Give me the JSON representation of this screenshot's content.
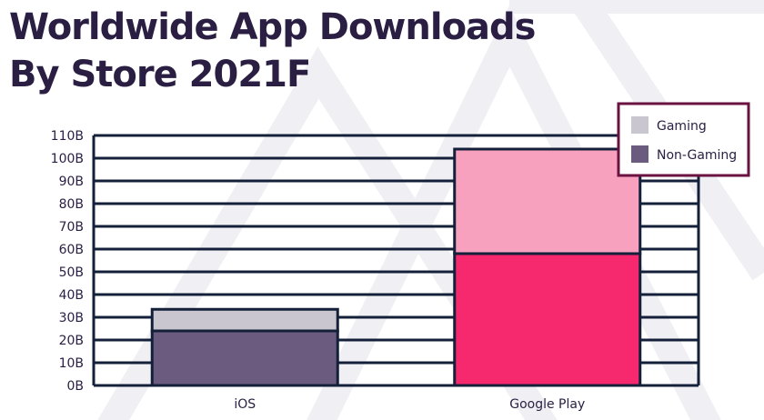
{
  "title_line1": "Worldwide App Downloads",
  "title_line2": "By Store 2021F",
  "chart_data": {
    "type": "bar",
    "stacked": true,
    "categories": [
      "iOS",
      "Google Play"
    ],
    "series": [
      {
        "name": "Non-Gaming",
        "values": [
          24,
          58
        ]
      },
      {
        "name": "Gaming",
        "values": [
          9.5,
          46
        ]
      }
    ],
    "yticks": [
      "0B",
      "10B",
      "20B",
      "30B",
      "40B",
      "50B",
      "60B",
      "70B",
      "80B",
      "90B",
      "100B",
      "110B"
    ],
    "ylim": [
      0,
      110
    ],
    "grid": true,
    "legend_position": "top-right",
    "colors": {
      "ios_non_gaming": "#6b5b7e",
      "ios_gaming": "#c9c6cf",
      "gp_non_gaming": "#f7296e",
      "gp_gaming": "#f8a1bf",
      "outline": "#14203a",
      "legend_gaming": "#c9c6cf",
      "legend_non_gaming": "#6b5b7e",
      "legend_border": "#6a1240"
    }
  }
}
